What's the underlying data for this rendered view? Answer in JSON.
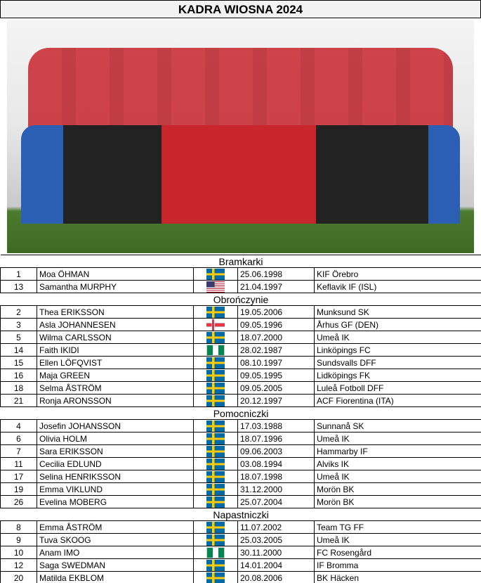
{
  "header": {
    "title": "KADRA WIOSNA 2024"
  },
  "sections": [
    {
      "title": "Bramkarki",
      "players": [
        {
          "number": 1,
          "name": "Moa ÖHMAN",
          "born": "25.06.1998",
          "club": "KIF Örebro"
        },
        {
          "number": 13,
          "name": "Samantha MURPHY",
          "born": "21.04.1997",
          "club": "Keflavik IF (ISL)"
        }
      ]
    },
    {
      "title": "Obrończynie",
      "players": [
        {
          "number": 2,
          "name": "Thea ERIKSSON",
          "born": "19.05.2006",
          "club": "Munksund SK"
        },
        {
          "number": 3,
          "name": "Asla JOHANNESEN",
          "born": "09.05.1996",
          "club": "Århus GF (DEN)"
        },
        {
          "number": 5,
          "name": "Wilma CARLSSON",
          "born": "18.07.2000",
          "club": "Umeå IK"
        },
        {
          "number": 14,
          "name": "Faith IKIDI",
          "born": "28.02.1987",
          "club": "Linköpings FC"
        },
        {
          "number": 15,
          "name": "Ellen LÖFQVIST",
          "born": "08.10.1997",
          "club": "Sundsvalls DFF"
        },
        {
          "number": 16,
          "name": "Maja GREEN",
          "born": "09.05.1995",
          "club": "Lidköpings FK"
        },
        {
          "number": 18,
          "name": "Selma ÅSTRÖM",
          "born": "09.05.2005",
          "club": "Luleå Fotboll DFF"
        },
        {
          "number": 21,
          "name": "Ronja ARONSSON",
          "born": "20.12.1997",
          "club": "ACF Fiorentina (ITA)"
        }
      ]
    },
    {
      "title": "Pomocniczki",
      "players": [
        {
          "number": 4,
          "name": "Josefin JOHANSSON",
          "born": "17.03.1988",
          "club": "Sunnanå SK"
        },
        {
          "number": 6,
          "name": "Olivia HOLM",
          "born": "18.07.1996",
          "club": "Umeå IK"
        },
        {
          "number": 7,
          "name": "Sara ERIKSSON",
          "born": "09.06.2003",
          "club": "Hammarby IF"
        },
        {
          "number": 11,
          "name": "Cecilia EDLUND",
          "born": "03.08.1994",
          "club": "Alviks IK"
        },
        {
          "number": 17,
          "name": "Selina HENRIKSSON",
          "born": "18.07.1998",
          "club": "Umeå IK"
        },
        {
          "number": 19,
          "name": "Emma VIKLUND",
          "born": "31.12.2000",
          "club": "Morön BK"
        },
        {
          "number": 26,
          "name": "Evelina MOBERG",
          "born": "25.07.2004",
          "club": "Morön BK"
        }
      ]
    },
    {
      "title": "Napastniczki",
      "players": [
        {
          "number": 8,
          "name": "Emma ÅSTRÖM",
          "born": "11.07.2002",
          "club": "Team TG FF"
        },
        {
          "number": 9,
          "name": "Tuva SKOOG",
          "born": "25.03.2005",
          "club": "Umeå IK"
        },
        {
          "number": 10,
          "name": "Anam IMO",
          "born": "30.11.2000",
          "club": "FC Rosengård"
        },
        {
          "number": 12,
          "name": "Saga SWEDMAN",
          "born": "14.01.2004",
          "club": "IF Bromma"
        },
        {
          "number": 20,
          "name": "Matilda EKBLOM",
          "born": "20.08.2006",
          "club": "BK Häcken"
        }
      ]
    }
  ]
}
